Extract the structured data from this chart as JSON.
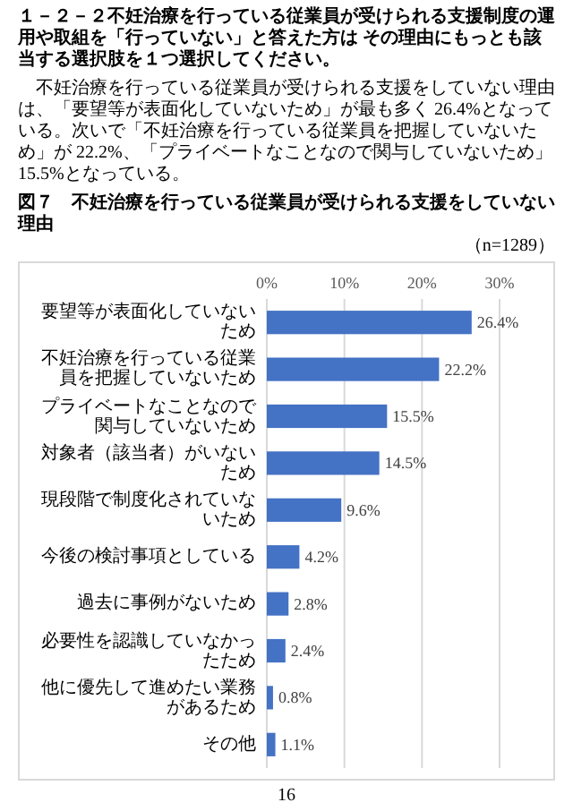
{
  "chart_data": {
    "type": "bar",
    "orientation": "horizontal",
    "title": "図７　不妊治療を行っている従業員が受けられる支援をしていない理由",
    "annotations": [
      "１－２－２不妊治療を行っている従業員が受けられる支援制度の運用や取組を「行っていない」と答えた方は その理由にもっとも該当する選択肢を１つ選択してください。",
      "不妊治療を行っている従業員が受けられる支援をしていない理由は、「要望等が表面化していないため」が最も多く 26.4%となっている。次いで「不妊治療を行っている従業員を把握していないため」が 22.2%、「プライベートなことなので関与していないため」15.5%となっている。",
      "（n=1289）",
      "16"
    ],
    "categories": [
      "要望等が表面化していないため",
      "不妊治療を行っている従業員を把握していないため",
      "プライベートなことなので関与していないため",
      "対象者（該当者）がいないため",
      "現段階で制度化されていないため",
      "今後の検討事項としている",
      "過去に事例がないため",
      "必要性を認識していなかったため",
      "他に優先して進めたい業務があるため",
      "その他"
    ],
    "values": [
      26.4,
      22.2,
      15.5,
      14.5,
      9.6,
      4.2,
      2.8,
      2.4,
      0.8,
      1.1
    ],
    "value_labels": [
      "26.4%",
      "22.2%",
      "15.5%",
      "14.5%",
      "9.6%",
      "4.2%",
      "2.8%",
      "2.4%",
      "0.8%",
      "1.1%"
    ],
    "color": "#4472c4",
    "xlim": [
      0,
      30
    ],
    "xticks": [
      {
        "value": 0,
        "label": "0%"
      },
      {
        "value": 10,
        "label": "10%"
      },
      {
        "value": 20,
        "label": "20%"
      },
      {
        "value": 30,
        "label": "30%"
      }
    ],
    "grid": "x"
  }
}
